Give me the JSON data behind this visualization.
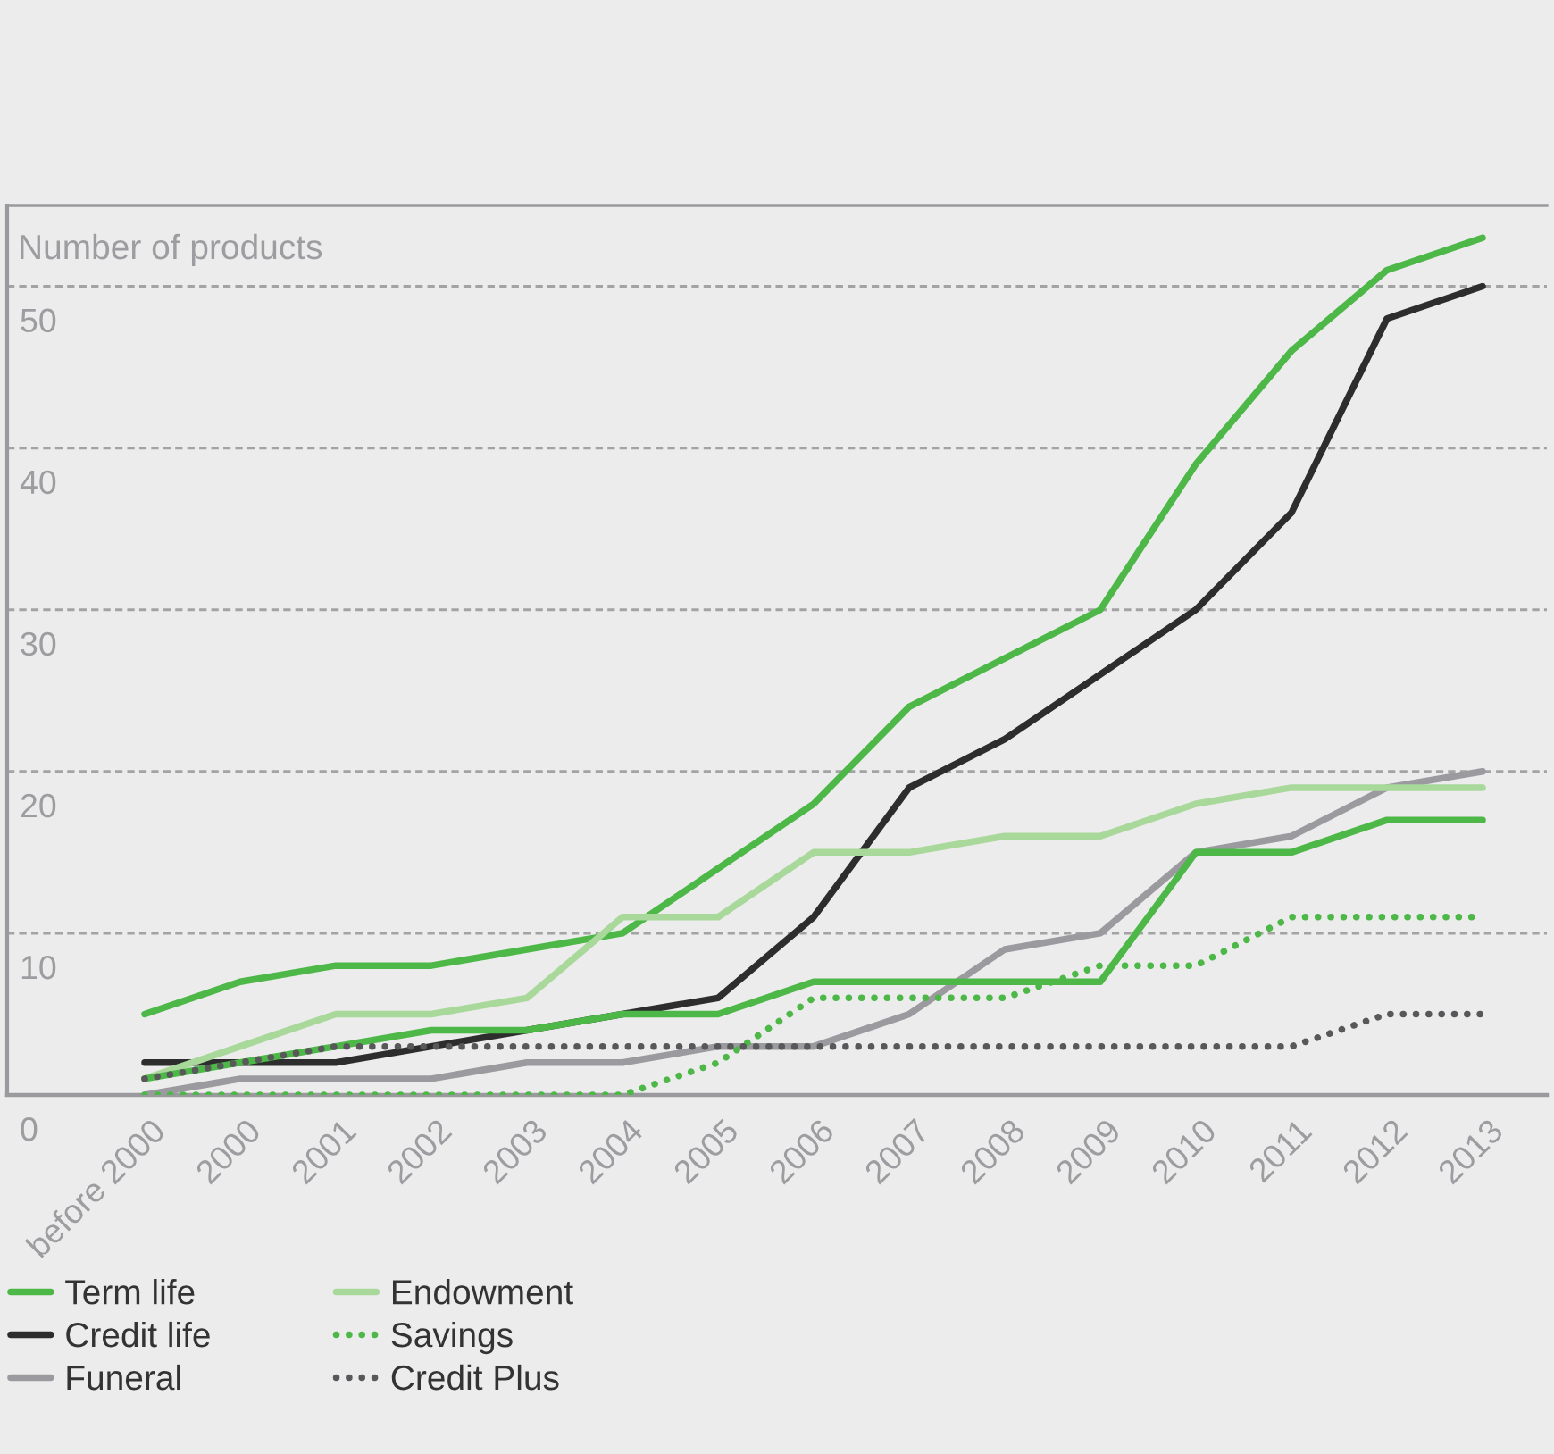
{
  "chart_data": {
    "type": "line",
    "ylabel": "Number of products",
    "categories": [
      "before 2000",
      "2000",
      "2001",
      "2002",
      "2003",
      "2004",
      "2005",
      "2006",
      "2007",
      "2008",
      "2009",
      "2010",
      "2011",
      "2012",
      "2013"
    ],
    "series": [
      {
        "name": "Term life",
        "color": "#4db848",
        "line_style": "solid",
        "values": [
          5,
          7,
          8,
          8,
          9,
          10,
          14,
          18,
          24,
          27,
          30,
          39,
          46,
          51,
          53
        ]
      },
      {
        "name": "Credit life",
        "color": "#2d2d2d",
        "line_style": "solid",
        "values": [
          2,
          2,
          2,
          3,
          4,
          5,
          6,
          11,
          19,
          22,
          26,
          30,
          36,
          48,
          50
        ]
      },
      {
        "name": "Funeral",
        "color": "#9b9b9f",
        "line_style": "solid",
        "values": [
          0,
          1,
          1,
          1,
          2,
          2,
          3,
          3,
          5,
          9,
          10,
          15,
          16,
          19,
          20
        ]
      },
      {
        "name": "Endowment",
        "color": "#a9d89b",
        "line_style": "solid",
        "values": [
          1,
          3,
          5,
          5,
          6,
          11,
          11,
          15,
          15,
          16,
          16,
          18,
          19,
          19,
          19
        ]
      },
      {
        "name": "Savings",
        "color": "#4db848",
        "line_style": "dotted",
        "values": [
          0,
          0,
          0,
          0,
          0,
          0,
          2,
          6,
          6,
          6,
          8,
          8,
          11,
          11,
          11
        ]
      },
      {
        "name": "Credit Plus",
        "color": "#58585a",
        "line_style": "dotted",
        "values": [
          1,
          2,
          3,
          3,
          3,
          3,
          3,
          3,
          3,
          3,
          3,
          3,
          3,
          5,
          5
        ]
      },
      {
        "color": "#4db848",
        "line_style": "solid",
        "values": [
          1,
          2,
          3,
          4,
          4,
          5,
          5,
          7,
          7,
          7,
          7,
          15,
          15,
          17,
          17
        ]
      }
    ],
    "ylim": [
      0,
      55
    ],
    "yticks": [
      0,
      10,
      20,
      30,
      40,
      50
    ],
    "grid": "y",
    "legend": "bottom left"
  }
}
